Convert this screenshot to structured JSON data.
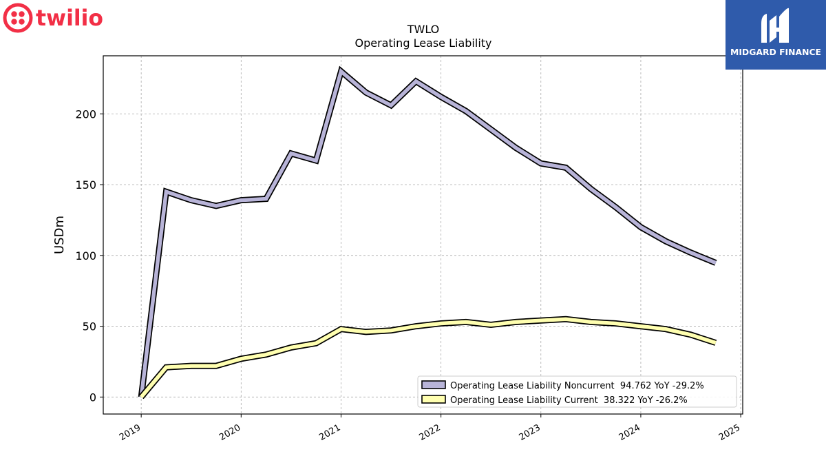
{
  "brand": {
    "company_logo_text": "twilio",
    "company_color": "#f22f46",
    "watermark_text": "MIDGARD FINANCE",
    "watermark_color": "#2f5bab"
  },
  "chart_data": {
    "type": "line",
    "title": "TWLO",
    "subtitle": "Operating Lease Liability",
    "xlabel": "",
    "ylabel": "USDm",
    "xlim": [
      2018.62,
      2025.02
    ],
    "ylim": [
      -12,
      241
    ],
    "x_ticks": [
      "2019",
      "2020",
      "2021",
      "2022",
      "2023",
      "2024",
      "2025"
    ],
    "y_ticks": [
      "0",
      "50",
      "100",
      "150",
      "200"
    ],
    "grid": true,
    "legend_position": "lower-right",
    "series": [
      {
        "name": "Operating Lease Liability Noncurrent",
        "legend_label": "Operating Lease Liability Noncurrent  94.762 YoY -29.2%",
        "color": "#b8b4d8",
        "x": [
          2019.0,
          2019.25,
          2019.5,
          2019.75,
          2020.0,
          2020.25,
          2020.5,
          2020.75,
          2021.0,
          2021.25,
          2021.5,
          2021.75,
          2022.0,
          2022.25,
          2022.5,
          2022.75,
          2023.0,
          2023.25,
          2023.5,
          2023.75,
          2024.0,
          2024.25,
          2024.5,
          2024.75
        ],
        "values": [
          0,
          145,
          139,
          135,
          139,
          140,
          172,
          167,
          230,
          215,
          206,
          223,
          212,
          202,
          189,
          176,
          165,
          162,
          147,
          134,
          120,
          110,
          102,
          94.762
        ]
      },
      {
        "name": "Operating Lease Liability Current",
        "legend_label": "Operating Lease Liability Current  38.322 YoY -26.2%",
        "color": "#ffffb0",
        "x": [
          2019.0,
          2019.25,
          2019.5,
          2019.75,
          2020.0,
          2020.25,
          2020.5,
          2020.75,
          2021.0,
          2021.25,
          2021.5,
          2021.75,
          2022.0,
          2022.25,
          2022.5,
          2022.75,
          2023.0,
          2023.25,
          2023.5,
          2023.75,
          2024.0,
          2024.25,
          2024.5,
          2024.75
        ],
        "values": [
          0,
          21,
          22,
          22,
          27,
          30,
          35,
          38,
          48,
          46,
          47,
          50,
          52,
          53,
          51,
          53,
          54,
          55,
          53,
          52,
          50,
          48,
          44,
          38.322
        ]
      }
    ]
  }
}
